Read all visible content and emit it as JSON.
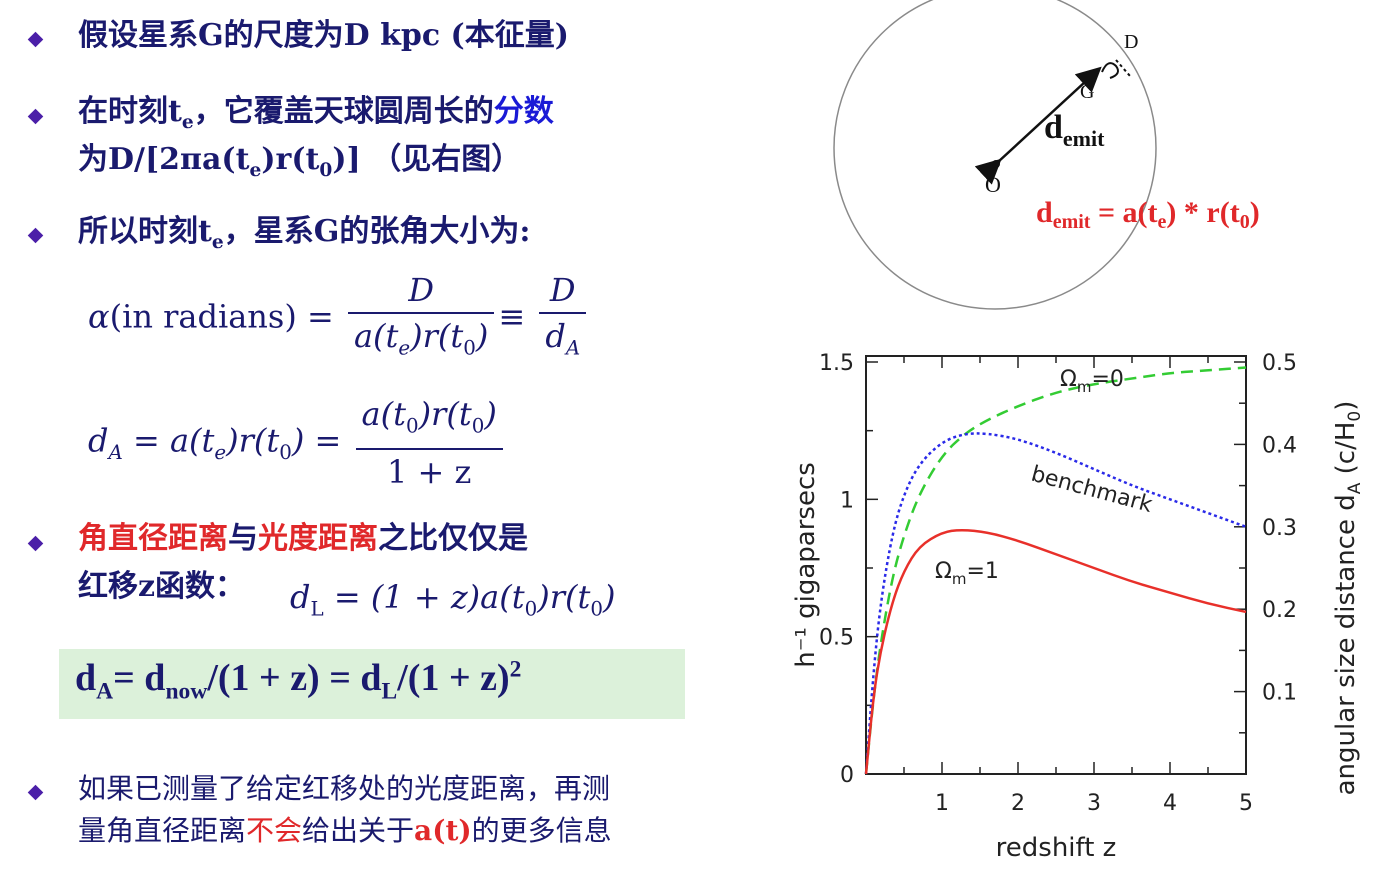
{
  "bullets": {
    "b1": "假设星系G的尺度为D kpc  (本征量)",
    "b2_pre": "在时刻t",
    "b2_sub": "e",
    "b2_mid": "，它覆盖天球圆周长的",
    "b2_blue": "分数",
    "b2_l2a": "为D/[2πa(t",
    "b2_l2b": "e",
    "b2_l2c": ")r(t",
    "b2_l2d": "0",
    "b2_l2e": ")]  （见右图）",
    "b3_pre": "所以时刻t",
    "b3_sub": "e",
    "b3_post": "，星系G的张角大小为:",
    "b4_red1": "角直径距离",
    "b4_mid": "与",
    "b4_red2": "光度距离",
    "b4_post": "之比仅仅是",
    "b4_l2": "红移z函数：",
    "b5_l1": "如果已测量了给定红移处的光度距离，再测",
    "b5_l2a": "量角直径距离",
    "b5_l2red": "不会",
    "b5_l2b": "给出关于",
    "b5_l2red2": "a(t)",
    "b5_l2c": "的更多信息"
  },
  "equations": {
    "alpha_lhs": "α",
    "alpha_paren": "(in radians) =",
    "alpha_num": "D",
    "alpha_den": "a(t",
    "alpha_den_sub": "e",
    "alpha_den2": ")r(t",
    "alpha_den_sub2": "0",
    "alpha_den3": ")",
    "equiv": "≡",
    "alpha_num2": "D",
    "alpha_den4": "d",
    "alpha_den4_sub": "A",
    "da_lhs": "d",
    "da_lhs_sub": "A",
    "da_mid": " = a(t",
    "da_mid_sub": "e",
    "da_mid2": ")r(t",
    "da_mid_sub2": "0",
    "da_mid3": ") =",
    "da_num": "a(t",
    "da_num_sub": "0",
    "da_num2": ")r(t",
    "da_num_sub2": "0",
    "da_num3": ")",
    "da_den": "1 + z",
    "dl_lhs": "d",
    "dl_lhs_sub": "L",
    "dl_rhs": " = (1 + z)a(t",
    "dl_rhs_sub": "0",
    "dl_rhs2": ")r(t",
    "dl_rhs_sub2": "0",
    "dl_rhs3": ")",
    "box_d": "d",
    "box_sub_a": "A",
    "box_eq1": "= d",
    "box_sub_now": "now",
    "box_eq2": "/(1 + z) = d",
    "box_sub_l": "L",
    "box_eq3": "/(1 + z)",
    "box_sup": "2"
  },
  "diagram": {
    "label_o": "O",
    "label_g": "G",
    "label_d": "D",
    "label_demit": "d",
    "label_demit_sub": "emit",
    "formula_a": "d",
    "formula_sub": "emit",
    "formula_b": " = a(t",
    "formula_sub2": "e",
    "formula_c": ") * r(t",
    "formula_sub3": "0",
    "formula_d": ")"
  },
  "colors": {
    "text": "#1a1a6e",
    "red": "#e0282a",
    "blue": "#1a1ad6",
    "green": "#33cc33",
    "dotted_blue": "#2a2ae8",
    "curve_red": "#e8302a",
    "highlight": "#dcf1da"
  },
  "chart_data": {
    "type": "line",
    "xlabel": "redshift z",
    "ylabel_left": "h⁻¹ gigaparsecs",
    "ylabel_right": "angular size distance d",
    "ylabel_right_sub": "A",
    "ylabel_right_tail": " (c/H",
    "ylabel_right_tail_sub": "0",
    "ylabel_right_end": ")",
    "xlim": [
      0,
      5
    ],
    "ylim_left": [
      0,
      1.5
    ],
    "ylim_right": [
      0,
      0.5
    ],
    "x_ticks": [
      "1",
      "2",
      "3",
      "4",
      "5"
    ],
    "y_ticks_left": [
      "0",
      "0.5",
      "1",
      "1.5"
    ],
    "y_ticks_right": [
      "0.1",
      "0.2",
      "0.3",
      "0.4",
      "0.5"
    ],
    "label_om0": "Ω",
    "label_om0_sub": "m",
    "label_om0_val": "=0",
    "label_bench": "benchmark",
    "label_om1": "Ω",
    "label_om1_sub": "m",
    "label_om1_val": "=1",
    "series": [
      {
        "name": "Ωm=0",
        "style": "dashed",
        "color": "#33cc33",
        "x": [
          0,
          0.1,
          0.2,
          0.35,
          0.5,
          0.7,
          1.0,
          1.3,
          1.6,
          2.0,
          2.5,
          3.0,
          3.5,
          4.0,
          4.5,
          5.0
        ],
        "y": [
          0,
          0.28,
          0.49,
          0.72,
          0.87,
          1.02,
          1.16,
          1.24,
          1.29,
          1.34,
          1.39,
          1.42,
          1.44,
          1.46,
          1.47,
          1.48
        ]
      },
      {
        "name": "benchmark",
        "style": "dotted",
        "color": "#2a2ae8",
        "x": [
          0,
          0.1,
          0.2,
          0.35,
          0.5,
          0.7,
          1.0,
          1.3,
          1.6,
          2.0,
          2.5,
          3.0,
          3.5,
          4.0,
          4.5,
          5.0
        ],
        "y": [
          0,
          0.38,
          0.64,
          0.88,
          1.02,
          1.13,
          1.21,
          1.24,
          1.24,
          1.22,
          1.17,
          1.11,
          1.05,
          1.0,
          0.95,
          0.9
        ]
      },
      {
        "name": "Ωm=1",
        "style": "solid",
        "color": "#e8302a",
        "x": [
          0,
          0.1,
          0.2,
          0.35,
          0.5,
          0.7,
          1.0,
          1.25,
          1.6,
          2.0,
          2.5,
          3.0,
          3.5,
          4.0,
          4.5,
          5.0
        ],
        "y": [
          0,
          0.29,
          0.46,
          0.63,
          0.74,
          0.83,
          0.88,
          0.89,
          0.88,
          0.85,
          0.8,
          0.75,
          0.7,
          0.66,
          0.62,
          0.59
        ]
      }
    ]
  }
}
